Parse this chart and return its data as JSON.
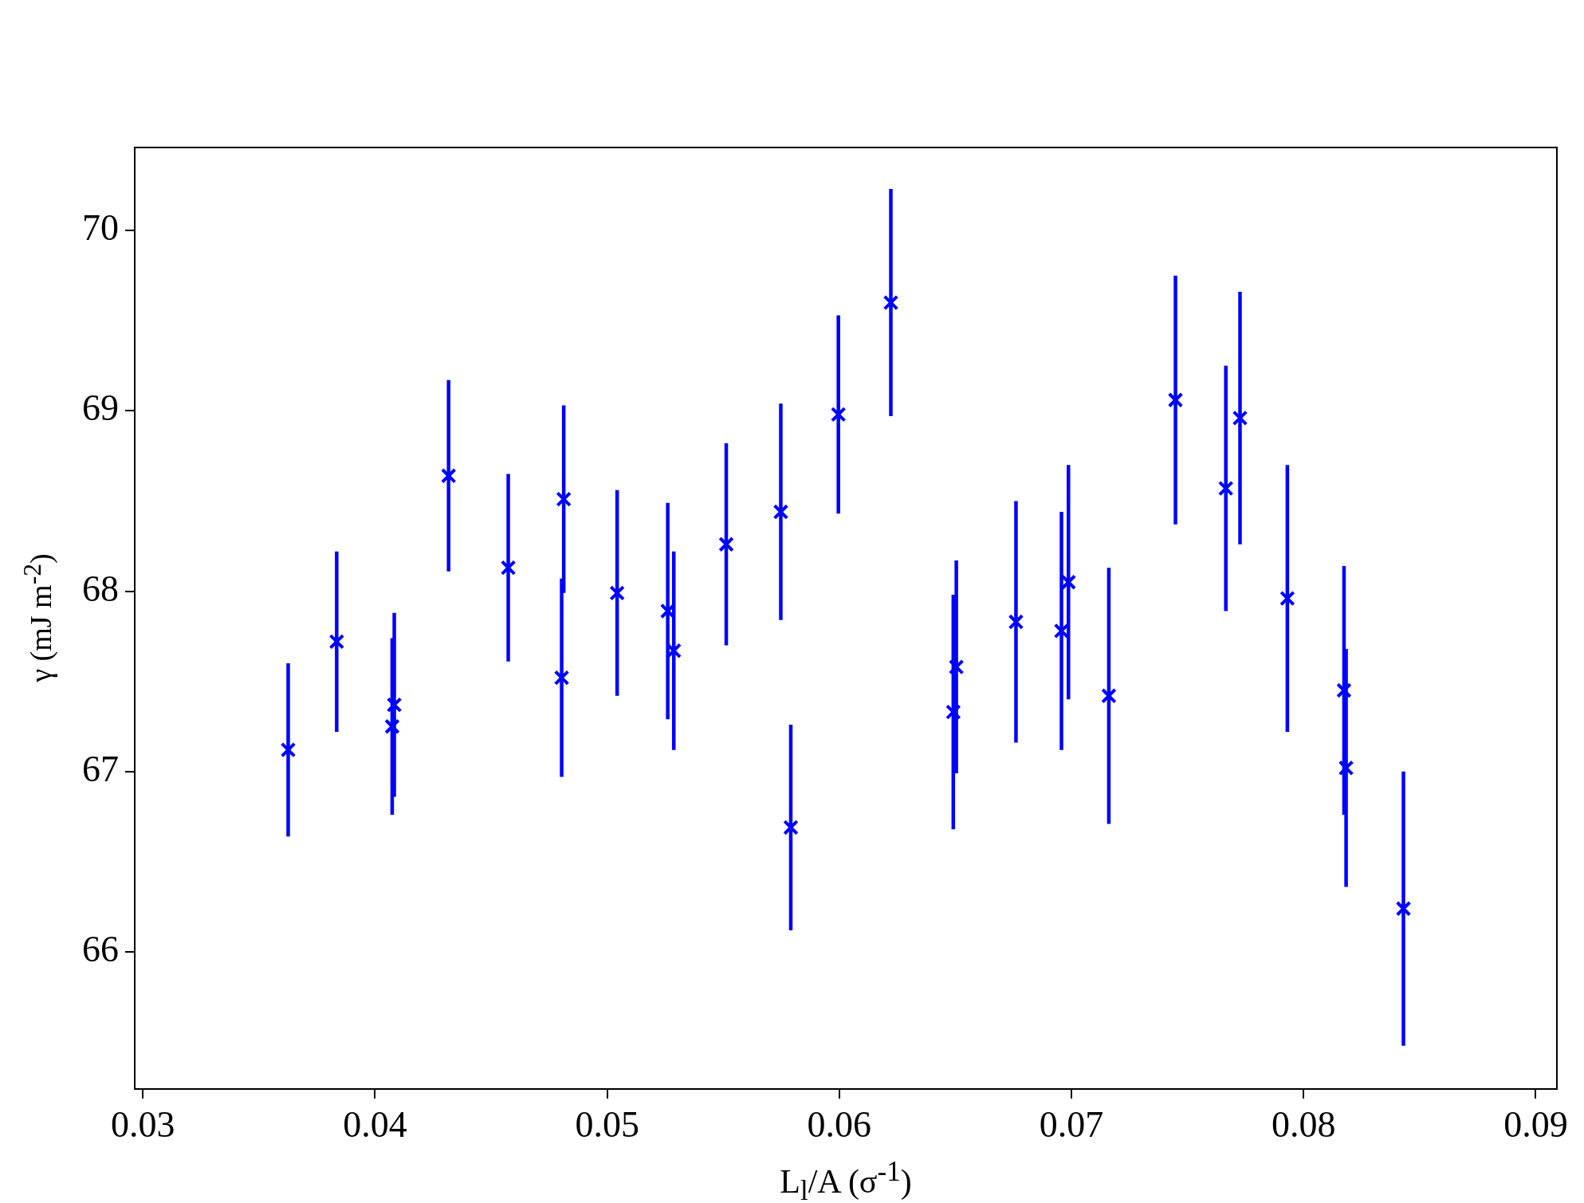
{
  "chart_data": {
    "type": "scatter",
    "xlabel": "L$_{l}$/A (σ$^{-1}$)",
    "ylabel": "γ (mJ m$^{-2}$)",
    "x": [
      0.03626,
      0.03835,
      0.04074,
      0.04083,
      0.04317,
      0.04574,
      0.04804,
      0.04813,
      0.05043,
      0.05261,
      0.05287,
      0.05513,
      0.05748,
      0.05791,
      0.05996,
      0.06222,
      0.06491,
      0.06504,
      0.06761,
      0.06957,
      0.06987,
      0.07161,
      0.07448,
      0.07665,
      0.07726,
      0.0793,
      0.08174,
      0.08183,
      0.0843
    ],
    "series": [
      {
        "color": "#0000ff",
        "values": [
          67.12,
          67.72,
          67.25,
          67.37,
          68.64,
          68.13,
          67.52,
          68.51,
          67.99,
          67.89,
          67.67,
          68.26,
          68.44,
          66.69,
          68.98,
          69.6,
          67.33,
          67.58,
          67.83,
          67.78,
          68.05,
          67.42,
          69.06,
          68.57,
          68.96,
          67.96,
          67.45,
          67.02,
          66.24
        ],
        "errors": [
          0.48,
          0.5,
          0.49,
          0.51,
          0.53,
          0.52,
          0.55,
          0.52,
          0.57,
          0.6,
          0.55,
          0.56,
          0.6,
          0.57,
          0.55,
          0.63,
          0.65,
          0.59,
          0.67,
          0.66,
          0.65,
          0.71,
          0.69,
          0.68,
          0.7,
          0.74,
          0.69,
          0.66,
          0.76
        ]
      }
    ],
    "marker": "cross",
    "xlim": [
      0.02965,
      0.09091
    ],
    "ylim": [
      65.24,
      70.46
    ],
    "xticks": [
      {
        "value": 0.03,
        "label": "0.03"
      },
      {
        "value": 0.04,
        "label": "0.04"
      },
      {
        "value": 0.05,
        "label": "0.05"
      },
      {
        "value": 0.06,
        "label": "0.06"
      },
      {
        "value": 0.07,
        "label": "0.07"
      },
      {
        "value": 0.08,
        "label": "0.08"
      },
      {
        "value": 0.09,
        "label": "0.09"
      }
    ],
    "yticks": [
      66,
      67,
      68,
      69,
      70
    ],
    "grid": false,
    "legend": false
  }
}
